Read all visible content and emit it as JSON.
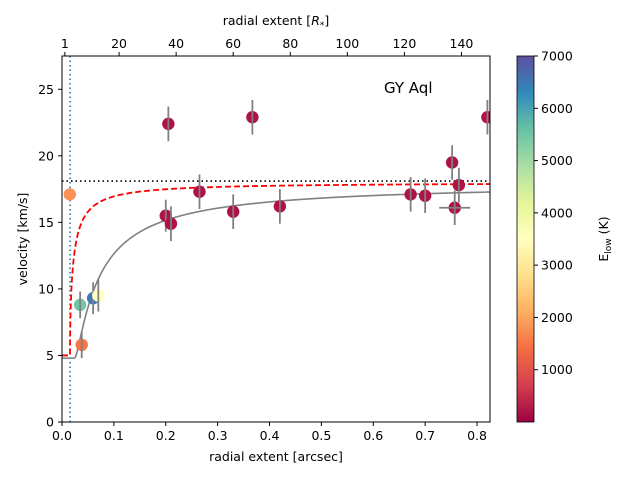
{
  "chart_data": {
    "type": "scatter",
    "annotation": "GY Aql",
    "xlabel": "radial extent [arcsec]",
    "ylabel": "velocity [km/s]",
    "xlabel_top_prefix": "radial extent [",
    "xlabel_top_r": "R",
    "xlabel_top_star": "*",
    "xlabel_top_suffix": "]",
    "xlim": [
      0,
      0.825
    ],
    "ylim": [
      0,
      27.5
    ],
    "top_xlim": [
      0,
      150
    ],
    "x_ticks": [
      "0.0",
      "0.1",
      "0.2",
      "0.3",
      "0.4",
      "0.5",
      "0.6",
      "0.7",
      "0.8"
    ],
    "x_tick_values": [
      0,
      0.1,
      0.2,
      0.3,
      0.4,
      0.5,
      0.6,
      0.7,
      0.8
    ],
    "y_ticks": [
      "0",
      "5",
      "10",
      "15",
      "20",
      "25"
    ],
    "y_tick_values": [
      0,
      5,
      10,
      15,
      20,
      25
    ],
    "top_ticks": [
      "1",
      "20",
      "40",
      "60",
      "80",
      "100",
      "120",
      "140"
    ],
    "top_tick_values": [
      1,
      20,
      40,
      60,
      80,
      100,
      120,
      140
    ],
    "colorbar": {
      "label_main": "E",
      "label_sub": "low",
      "label_unit": " (K)",
      "range": [
        0,
        7000
      ],
      "ticks": [
        "1000",
        "2000",
        "3000",
        "4000",
        "5000",
        "6000",
        "7000"
      ],
      "tick_values": [
        1000,
        2000,
        3000,
        4000,
        5000,
        6000,
        7000
      ]
    },
    "horizontal_line": {
      "y": 18.1,
      "style": "dotted",
      "color": "#000000"
    },
    "vertical_line": {
      "x": 0.0155,
      "style": "dotted",
      "color": "#1f77b4"
    },
    "curves": [
      {
        "name": "dashed-model",
        "color": "#ff0000",
        "style": "dashed",
        "v_inf": 18.0,
        "v0": 5.0,
        "r0": 0.0155,
        "beta": 0.5
      },
      {
        "name": "solid-fit",
        "color": "#808080",
        "style": "solid",
        "v_inf": 18.0,
        "v0": 4.8,
        "r0": 0.024,
        "beta": 1.9
      }
    ],
    "points": [
      {
        "x": 0.015,
        "y": 17.1,
        "e": 1800,
        "xerr": 0,
        "yerr": 0
      },
      {
        "x": 0.035,
        "y": 8.8,
        "e": 5500,
        "xerr": 0,
        "yerr": 1.0
      },
      {
        "x": 0.038,
        "y": 5.8,
        "e": 1500,
        "xerr": 0,
        "yerr": 1.0
      },
      {
        "x": 0.06,
        "y": 9.3,
        "e": 6500,
        "xerr": 0,
        "yerr": 1.2
      },
      {
        "x": 0.07,
        "y": 9.5,
        "e": 3500,
        "xerr": 0,
        "yerr": 1.2
      },
      {
        "x": 0.2,
        "y": 15.5,
        "e": 200,
        "xerr": 0,
        "yerr": 1.2
      },
      {
        "x": 0.205,
        "y": 22.4,
        "e": 200,
        "xerr": 0,
        "yerr": 1.3
      },
      {
        "x": 0.21,
        "y": 14.9,
        "e": 200,
        "xerr": 0,
        "yerr": 1.3
      },
      {
        "x": 0.265,
        "y": 17.3,
        "e": 200,
        "xerr": 0,
        "yerr": 1.3
      },
      {
        "x": 0.33,
        "y": 15.8,
        "e": 200,
        "xerr": 0,
        "yerr": 1.3
      },
      {
        "x": 0.367,
        "y": 22.9,
        "e": 200,
        "xerr": 0,
        "yerr": 1.3
      },
      {
        "x": 0.42,
        "y": 16.2,
        "e": 200,
        "xerr": 0,
        "yerr": 1.3
      },
      {
        "x": 0.672,
        "y": 17.1,
        "e": 200,
        "xerr": 0,
        "yerr": 1.3
      },
      {
        "x": 0.7,
        "y": 17.0,
        "e": 200,
        "xerr": 0,
        "yerr": 1.3
      },
      {
        "x": 0.752,
        "y": 19.5,
        "e": 200,
        "xerr": 0,
        "yerr": 1.3
      },
      {
        "x": 0.757,
        "y": 16.1,
        "e": 200,
        "xerr": 0.03,
        "yerr": 1.3
      },
      {
        "x": 0.765,
        "y": 17.8,
        "e": 200,
        "xerr": 0,
        "yerr": 1.3
      },
      {
        "x": 0.82,
        "y": 22.9,
        "e": 200,
        "xerr": 0,
        "yerr": 1.3
      }
    ]
  }
}
